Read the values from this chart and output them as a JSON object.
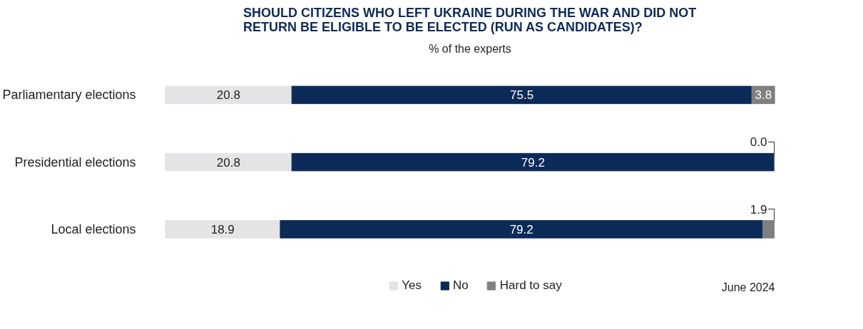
{
  "chart_data": {
    "type": "bar",
    "orientation": "horizontal",
    "stacked": true,
    "title": "SHOULD CITIZENS WHO LEFT UKRAINE DURING THE WAR AND DID NOT RETURN BE ELIGIBLE TO BE ELECTED (RUN AS CANDIDATES)?",
    "subtitle": "% of the experts",
    "categories": [
      "Parliamentary elections",
      "Presidential elections",
      "Local elections"
    ],
    "series": [
      {
        "name": "Yes",
        "color": "#e4e4e6",
        "values": [
          20.8,
          20.8,
          18.9
        ],
        "value_labels": [
          "20.8",
          "20.8",
          "18.9"
        ]
      },
      {
        "name": "No",
        "color": "#0c2a58",
        "values": [
          75.5,
          79.2,
          79.2
        ],
        "value_labels": [
          "75.5",
          "79.2",
          "79.2"
        ]
      },
      {
        "name": "Hard to say",
        "color": "#7f7f7f",
        "values": [
          3.8,
          0.0,
          1.9
        ],
        "value_labels": [
          "3.8",
          "0.0",
          "1.9"
        ]
      }
    ],
    "legend": "bottom",
    "tick_labels": "y",
    "annotations": [
      "June 2024"
    ]
  }
}
